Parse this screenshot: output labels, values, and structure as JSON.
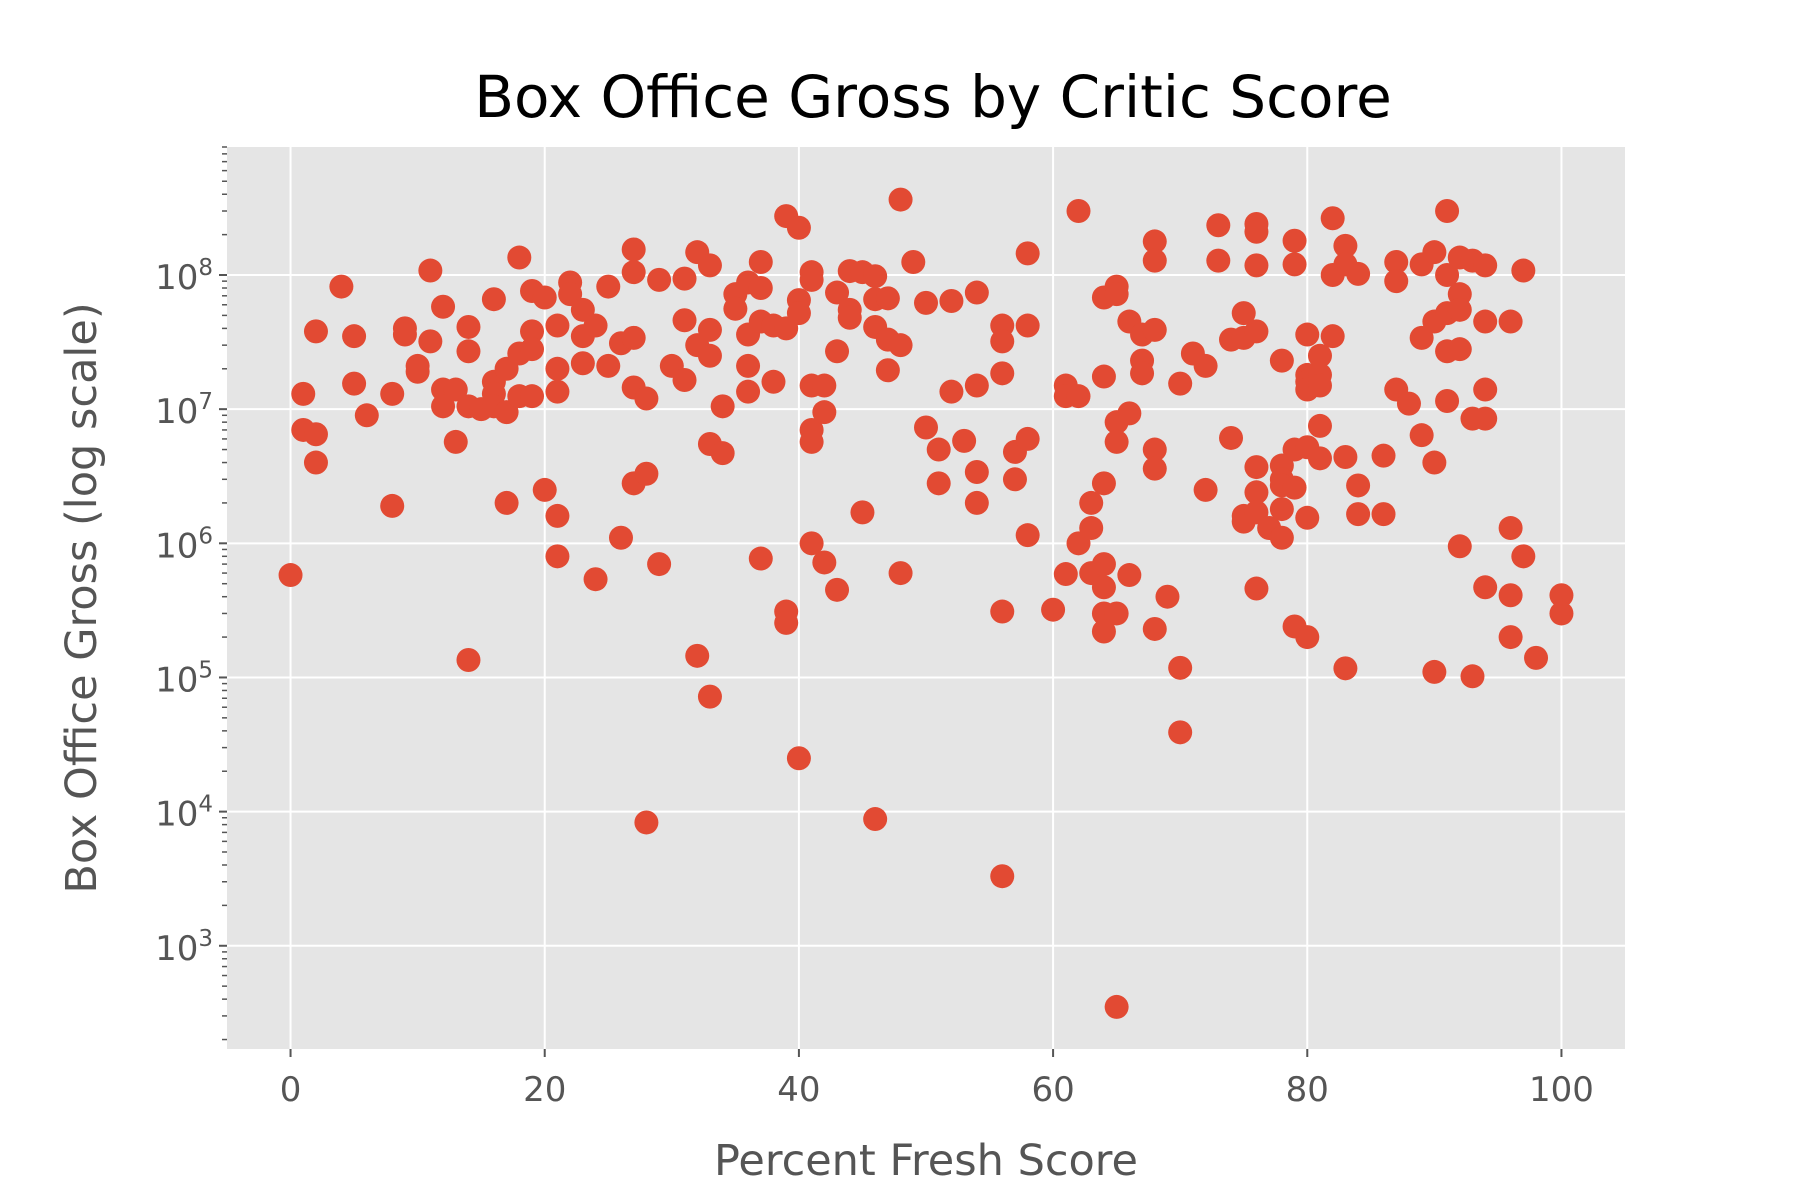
{
  "chart_data": {
    "type": "scatter",
    "title": "Box Office Gross by Critic Score",
    "xlabel": "Percent Fresh Score",
    "ylabel": "Box Office Gross (log scale)",
    "xlim": [
      -5,
      105
    ],
    "ylim": [
      170,
      900000000
    ],
    "y_scale": "log",
    "grid": true,
    "x_ticks": [
      "0",
      "20",
      "40",
      "60",
      "80",
      "100"
    ],
    "y_ticks": [
      {
        "base": "10",
        "exp": "3"
      },
      {
        "base": "10",
        "exp": "4"
      },
      {
        "base": "10",
        "exp": "5"
      },
      {
        "base": "10",
        "exp": "6"
      },
      {
        "base": "10",
        "exp": "7"
      },
      {
        "base": "10",
        "exp": "8"
      }
    ],
    "colors": {
      "points": "#e24a33",
      "plot_bg": "#e5e5e5",
      "grid": "#ffffff"
    },
    "series": [
      {
        "points": [
          [
            0,
            580000
          ],
          [
            1,
            13000000
          ],
          [
            1,
            7000000
          ],
          [
            2,
            6500000
          ],
          [
            2,
            4000000
          ],
          [
            2,
            38000000
          ],
          [
            4,
            82000000
          ],
          [
            5,
            35000000
          ],
          [
            5,
            15500000
          ],
          [
            6,
            9000000
          ],
          [
            8,
            13000000
          ],
          [
            8,
            1900000
          ],
          [
            9,
            40000000
          ],
          [
            9,
            36000000
          ],
          [
            10,
            21000000
          ],
          [
            10,
            19000000
          ],
          [
            11,
            108000000
          ],
          [
            11,
            32000000
          ],
          [
            12,
            58000000
          ],
          [
            12,
            14000000
          ],
          [
            12,
            10500000
          ],
          [
            13,
            14000000
          ],
          [
            13,
            5700000
          ],
          [
            14,
            41000000
          ],
          [
            14,
            27000000
          ],
          [
            14,
            10500000
          ],
          [
            14,
            135000
          ],
          [
            15,
            10000000
          ],
          [
            16,
            66000000
          ],
          [
            16,
            16000000
          ],
          [
            16,
            13000000
          ],
          [
            16,
            10500000
          ],
          [
            17,
            20000000
          ],
          [
            17,
            9500000
          ],
          [
            17,
            2000000
          ],
          [
            18,
            135000000
          ],
          [
            18,
            26000000
          ],
          [
            18,
            12500000
          ],
          [
            19,
            76000000
          ],
          [
            19,
            38000000
          ],
          [
            19,
            28000000
          ],
          [
            19,
            12500000
          ],
          [
            20,
            68000000
          ],
          [
            20,
            2500000
          ],
          [
            21,
            42000000
          ],
          [
            21,
            20000000
          ],
          [
            21,
            13500000
          ],
          [
            21,
            1600000
          ],
          [
            21,
            800000
          ],
          [
            22,
            88000000
          ],
          [
            22,
            72000000
          ],
          [
            23,
            55000000
          ],
          [
            23,
            35000000
          ],
          [
            23,
            22000000
          ],
          [
            24,
            42000000
          ],
          [
            24,
            540000
          ],
          [
            25,
            82000000
          ],
          [
            25,
            21000000
          ],
          [
            26,
            31000000
          ],
          [
            26,
            1100000
          ],
          [
            27,
            155000000
          ],
          [
            27,
            105000000
          ],
          [
            27,
            34000000
          ],
          [
            27,
            14500000
          ],
          [
            27,
            2800000
          ],
          [
            28,
            12000000
          ],
          [
            28,
            3300000
          ],
          [
            28,
            8300
          ],
          [
            29,
            92000000
          ],
          [
            29,
            700000
          ],
          [
            30,
            21000000
          ],
          [
            31,
            94000000
          ],
          [
            31,
            46000000
          ],
          [
            31,
            16500000
          ],
          [
            32,
            148000000
          ],
          [
            32,
            30000000
          ],
          [
            32,
            145000
          ],
          [
            33,
            118000000
          ],
          [
            33,
            39000000
          ],
          [
            33,
            25000000
          ],
          [
            33,
            5500000
          ],
          [
            33,
            72000
          ],
          [
            34,
            10500000
          ],
          [
            34,
            4700000
          ],
          [
            35,
            72000000
          ],
          [
            35,
            56000000
          ],
          [
            36,
            88000000
          ],
          [
            36,
            36000000
          ],
          [
            36,
            21000000
          ],
          [
            36,
            13500000
          ],
          [
            37,
            125000000
          ],
          [
            37,
            80000000
          ],
          [
            37,
            45000000
          ],
          [
            37,
            770000
          ],
          [
            38,
            42000000
          ],
          [
            38,
            16000000
          ],
          [
            39,
            275000000
          ],
          [
            39,
            40000000
          ],
          [
            39,
            310000
          ],
          [
            39,
            255000
          ],
          [
            40,
            225000000
          ],
          [
            40,
            65000000
          ],
          [
            40,
            52000000
          ],
          [
            40,
            25000
          ],
          [
            41,
            105000000
          ],
          [
            41,
            92000000
          ],
          [
            41,
            15000000
          ],
          [
            41,
            7000000
          ],
          [
            41,
            5700000
          ],
          [
            41,
            1000000
          ],
          [
            42,
            15000000
          ],
          [
            42,
            9500000
          ],
          [
            42,
            720000
          ],
          [
            43,
            74000000
          ],
          [
            43,
            27000000
          ],
          [
            43,
            450000
          ],
          [
            44,
            107000000
          ],
          [
            44,
            55000000
          ],
          [
            44,
            48000000
          ],
          [
            45,
            105000000
          ],
          [
            45,
            1700000
          ],
          [
            46,
            98000000
          ],
          [
            46,
            66000000
          ],
          [
            46,
            41000000
          ],
          [
            46,
            8800
          ],
          [
            47,
            67000000
          ],
          [
            47,
            33000000
          ],
          [
            47,
            19500000
          ],
          [
            48,
            365000000
          ],
          [
            48,
            30000000
          ],
          [
            48,
            600000
          ],
          [
            49,
            125000000
          ],
          [
            50,
            62000000
          ],
          [
            50,
            7300000
          ],
          [
            51,
            5000000
          ],
          [
            51,
            2800000
          ],
          [
            52,
            64000000
          ],
          [
            52,
            13500000
          ],
          [
            53,
            5800000
          ],
          [
            54,
            74000000
          ],
          [
            54,
            15000000
          ],
          [
            54,
            3400000
          ],
          [
            54,
            2000000
          ],
          [
            56,
            42000000
          ],
          [
            56,
            32000000
          ],
          [
            56,
            18500000
          ],
          [
            56,
            310000
          ],
          [
            56,
            3300
          ],
          [
            57,
            4800000
          ],
          [
            57,
            3000000
          ],
          [
            58,
            145000000
          ],
          [
            58,
            42000000
          ],
          [
            58,
            6000000
          ],
          [
            58,
            1150000
          ],
          [
            60,
            320000
          ],
          [
            61,
            15000000
          ],
          [
            61,
            12500000
          ],
          [
            61,
            590000
          ],
          [
            62,
            300000000
          ],
          [
            62,
            12500000
          ],
          [
            62,
            1000000
          ],
          [
            63,
            2000000
          ],
          [
            63,
            1300000
          ],
          [
            63,
            600000
          ],
          [
            64,
            68000000
          ],
          [
            64,
            17500000
          ],
          [
            64,
            2800000
          ],
          [
            64,
            700000
          ],
          [
            64,
            470000
          ],
          [
            64,
            300000
          ],
          [
            64,
            220000
          ],
          [
            65,
            82000000
          ],
          [
            65,
            72000000
          ],
          [
            65,
            8000000
          ],
          [
            65,
            5700000
          ],
          [
            65,
            300000
          ],
          [
            65,
            350
          ],
          [
            66,
            45000000
          ],
          [
            66,
            9300000
          ],
          [
            66,
            580000
          ],
          [
            67,
            36000000
          ],
          [
            67,
            23000000
          ],
          [
            67,
            18500000
          ],
          [
            68,
            178000000
          ],
          [
            68,
            128000000
          ],
          [
            68,
            39000000
          ],
          [
            68,
            5000000
          ],
          [
            68,
            3600000
          ],
          [
            68,
            230000
          ],
          [
            69,
            400000
          ],
          [
            70,
            15500000
          ],
          [
            70,
            118000
          ],
          [
            70,
            39000
          ],
          [
            71,
            26000000
          ],
          [
            72,
            21000000
          ],
          [
            72,
            2500000
          ],
          [
            73,
            235000000
          ],
          [
            73,
            128000000
          ],
          [
            74,
            33000000
          ],
          [
            74,
            6100000
          ],
          [
            75,
            52000000
          ],
          [
            75,
            34000000
          ],
          [
            75,
            1600000
          ],
          [
            75,
            1450000
          ],
          [
            76,
            240000000
          ],
          [
            76,
            210000000
          ],
          [
            76,
            118000000
          ],
          [
            76,
            38000000
          ],
          [
            76,
            3700000
          ],
          [
            76,
            2400000
          ],
          [
            76,
            1700000
          ],
          [
            76,
            460000
          ],
          [
            77,
            1300000
          ],
          [
            78,
            23000000
          ],
          [
            78,
            3800000
          ],
          [
            78,
            3000000
          ],
          [
            78,
            2700000
          ],
          [
            78,
            1800000
          ],
          [
            78,
            1100000
          ],
          [
            79,
            180000000
          ],
          [
            79,
            120000000
          ],
          [
            79,
            5000000
          ],
          [
            79,
            2600000
          ],
          [
            79,
            240000
          ],
          [
            80,
            36000000
          ],
          [
            80,
            18000000
          ],
          [
            80,
            16000000
          ],
          [
            80,
            14000000
          ],
          [
            80,
            5200000
          ],
          [
            80,
            1550000
          ],
          [
            80,
            200000
          ],
          [
            81,
            25000000
          ],
          [
            81,
            18000000
          ],
          [
            81,
            15000000
          ],
          [
            81,
            7500000
          ],
          [
            81,
            4300000
          ],
          [
            82,
            265000000
          ],
          [
            82,
            100000000
          ],
          [
            82,
            35000000
          ],
          [
            83,
            165000000
          ],
          [
            83,
            120000000
          ],
          [
            83,
            4400000
          ],
          [
            83,
            117000
          ],
          [
            84,
            102000000
          ],
          [
            84,
            2700000
          ],
          [
            84,
            1650000
          ],
          [
            86,
            4500000
          ],
          [
            86,
            1650000
          ],
          [
            87,
            125000000
          ],
          [
            87,
            90000000
          ],
          [
            87,
            14000000
          ],
          [
            88,
            11000000
          ],
          [
            89,
            120000000
          ],
          [
            89,
            34000000
          ],
          [
            89,
            6400000
          ],
          [
            90,
            148000000
          ],
          [
            90,
            45000000
          ],
          [
            90,
            4000000
          ],
          [
            90,
            110000
          ],
          [
            91,
            300000000
          ],
          [
            91,
            100000000
          ],
          [
            91,
            52000000
          ],
          [
            91,
            27000000
          ],
          [
            91,
            11500000
          ],
          [
            92,
            135000000
          ],
          [
            92,
            72000000
          ],
          [
            92,
            55000000
          ],
          [
            92,
            28000000
          ],
          [
            92,
            950000
          ],
          [
            93,
            128000000
          ],
          [
            93,
            8500000
          ],
          [
            93,
            102000
          ],
          [
            94,
            118000000
          ],
          [
            94,
            45000000
          ],
          [
            94,
            14000000
          ],
          [
            94,
            8500000
          ],
          [
            94,
            470000
          ],
          [
            96,
            45000000
          ],
          [
            96,
            1300000
          ],
          [
            96,
            410000
          ],
          [
            96,
            200000
          ],
          [
            97,
            108000000
          ],
          [
            97,
            800000
          ],
          [
            98,
            140000
          ],
          [
            100,
            410000
          ],
          [
            100,
            300000
          ]
        ]
      }
    ]
  }
}
